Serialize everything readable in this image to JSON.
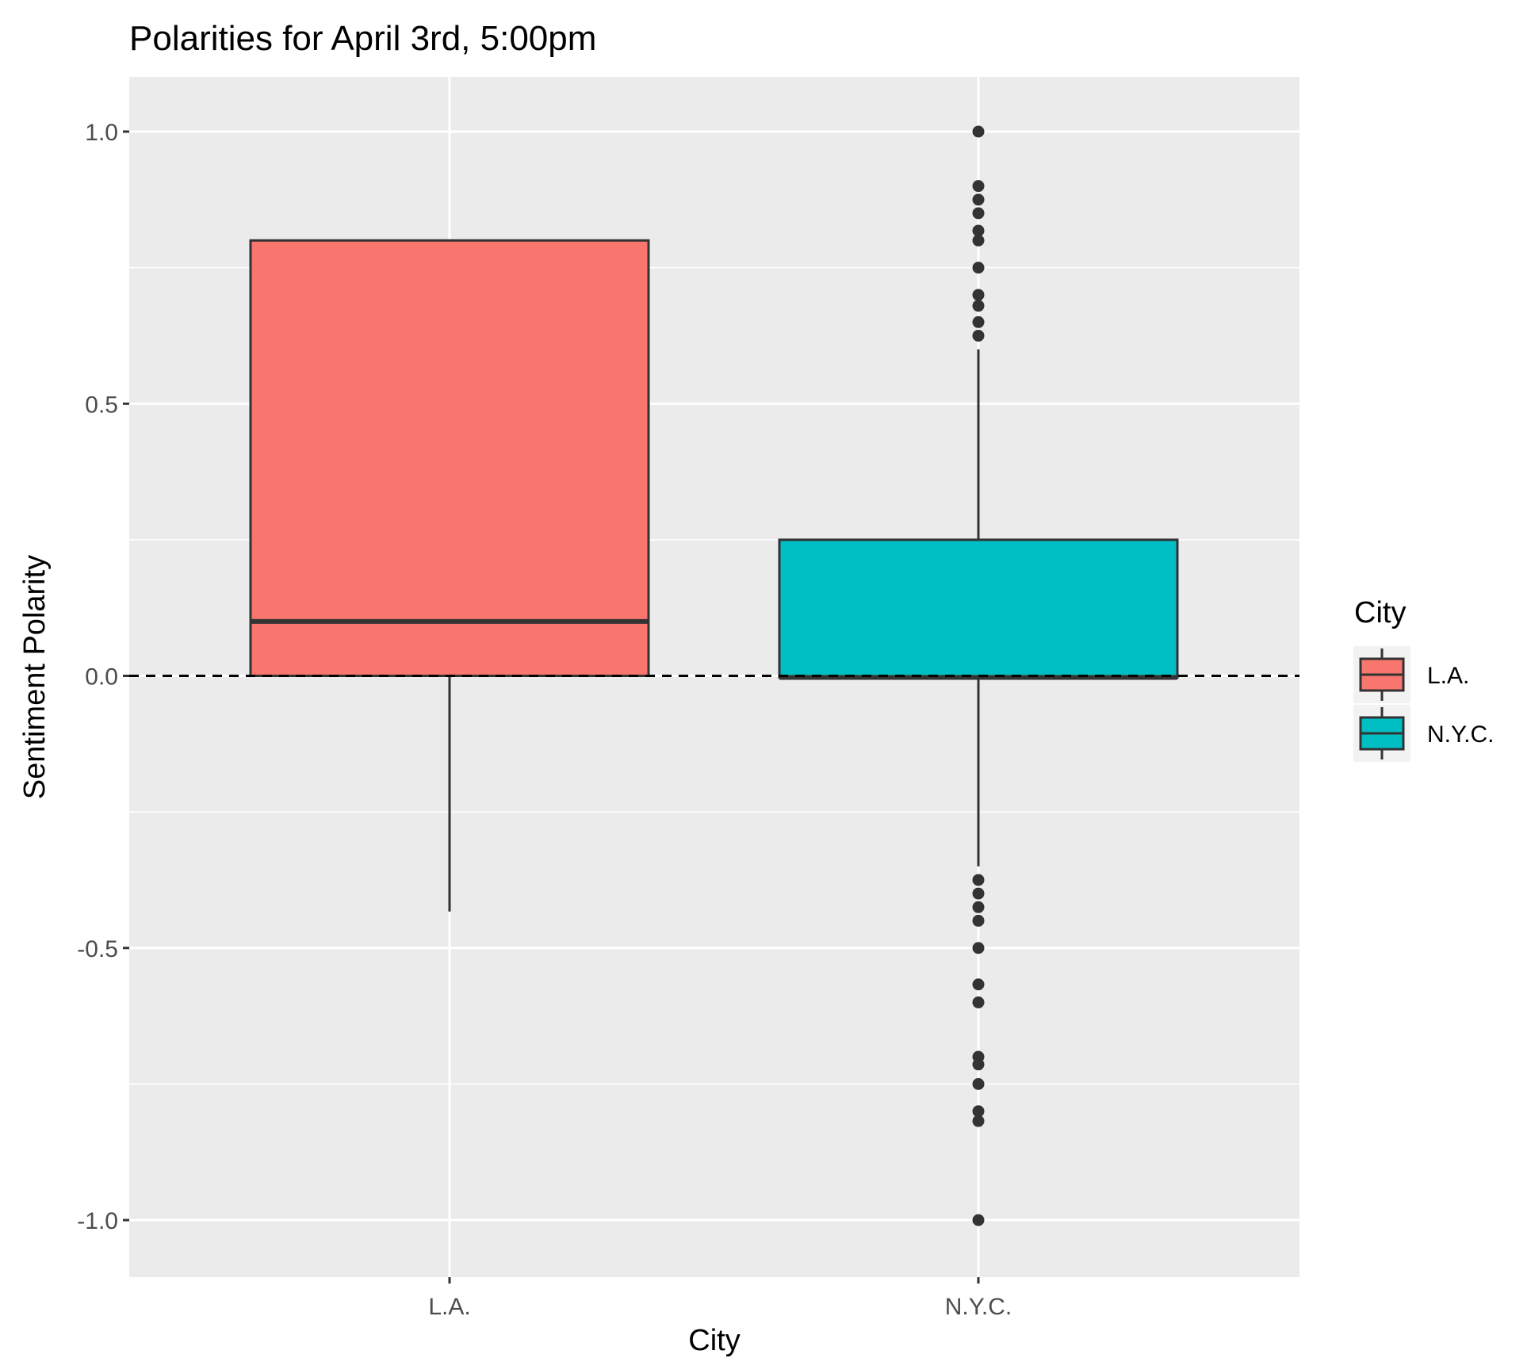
{
  "chart_data": {
    "type": "boxplot",
    "title": "Polarities for April 3rd, 5:00pm",
    "xlabel": "City",
    "ylabel": "Sentiment Polarity",
    "categories": [
      "L.A.",
      "N.Y.C."
    ],
    "ylim": [
      -1.1,
      1.1
    ],
    "yticks": [
      {
        "value": 1.0,
        "label": "1.0"
      },
      {
        "value": 0.5,
        "label": "0.5"
      },
      {
        "value": 0.0,
        "label": "0.0"
      },
      {
        "value": -0.5,
        "label": "-0.5"
      },
      {
        "value": -1.0,
        "label": "-1.0"
      }
    ],
    "grid": true,
    "reference_line": {
      "y": 0.0,
      "style": "dashed"
    },
    "boxes": [
      {
        "category": "L.A.",
        "color": "#F8766D",
        "lower_whisker": -0.433,
        "q1": 0.0,
        "median": 0.1,
        "q3": 0.8,
        "upper_whisker": 0.8,
        "outliers": []
      },
      {
        "category": "N.Y.C.",
        "color": "#00BFC4",
        "lower_whisker": -0.35,
        "q1": -0.003,
        "median": -0.003,
        "q3": 0.25,
        "upper_whisker": 0.6,
        "outliers": [
          1.0,
          0.9,
          0.875,
          0.85,
          0.818,
          0.8,
          0.75,
          0.7,
          0.68,
          0.65,
          0.625,
          -0.375,
          -0.4,
          -0.425,
          -0.45,
          -0.5,
          -0.567,
          -0.6,
          -0.7,
          -0.714,
          -0.75,
          -0.8,
          -0.818,
          -1.0
        ]
      }
    ],
    "legend": {
      "title": "City",
      "position": "right",
      "entries": [
        {
          "label": "L.A.",
          "color": "#F8766D"
        },
        {
          "label": "N.Y.C.",
          "color": "#00BFC4"
        }
      ]
    },
    "colors": {
      "panel": "#EBEBEB",
      "grid": "#FFFFFF",
      "box_outline": "#333333"
    }
  }
}
